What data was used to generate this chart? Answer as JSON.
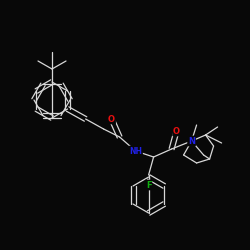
{
  "bg_color": "#080808",
  "bond_color": "#d8d8d8",
  "atom_colors": {
    "O": "#e81010",
    "N": "#2020e8",
    "F": "#10b010"
  },
  "bond_width": 0.9,
  "font_size_atom": 5.5,
  "figsize": [
    2.5,
    2.5
  ],
  "dpi": 100
}
